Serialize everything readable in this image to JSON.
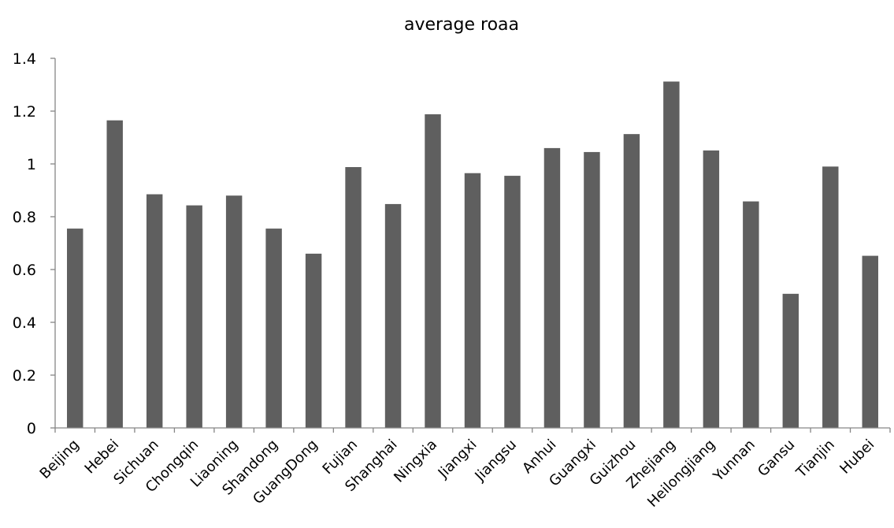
{
  "chart_data": {
    "type": "bar",
    "title": "average roaa",
    "xlabel": "",
    "ylabel": "",
    "ylim": [
      0,
      1.4
    ],
    "ytick_labels": [
      "0",
      "0.2",
      "0.4",
      "0.6",
      "0.8",
      "1",
      "1.2",
      "1.4"
    ],
    "categories": [
      "Beijing",
      "Hebei",
      "Sichuan",
      "Chongqin",
      "Liaoning",
      "Shandong",
      "GuangDong",
      "Fujian",
      "Shanghai",
      "Ningxia",
      "Jiangxi",
      "Jiangsu",
      "Anhui",
      "Guangxi",
      "Guizhou",
      "Zhejiang",
      "Heilongjiang",
      "Yunnan",
      "Gansu",
      "Tianjin",
      "Hubei"
    ],
    "values": [
      0.755,
      1.165,
      0.885,
      0.843,
      0.88,
      0.755,
      0.66,
      0.988,
      0.848,
      1.188,
      0.965,
      0.955,
      1.06,
      1.045,
      1.113,
      1.312,
      1.051,
      0.858,
      0.508,
      0.99,
      0.652
    ],
    "bar_color": "#5f5f5f",
    "grid": false,
    "legend": "none"
  }
}
